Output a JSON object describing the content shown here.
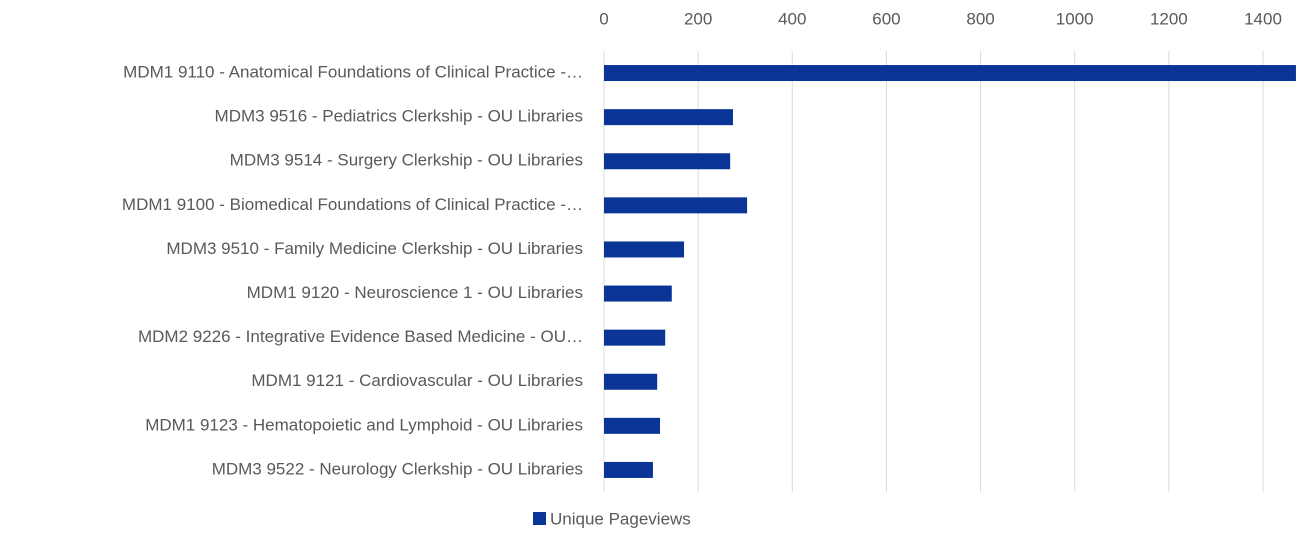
{
  "chart_data": {
    "type": "barh",
    "categories": [
      "MDM1 9110 - Anatomical Foundations of Clinical Practice -…",
      "MDM3 9516 - Pediatrics Clerkship - OU Libraries",
      "MDM3 9514 - Surgery Clerkship - OU Libraries",
      "MDM1 9100 - Biomedical Foundations of Clinical Practice -…",
      "MDM3 9510 - Family Medicine Clerkship - OU Libraries",
      "MDM1 9120 - Neuroscience 1 - OU Libraries",
      "MDM2 9226 - Integrative Evidence Based Medicine - OU…",
      "MDM1 9121 - Cardiovascular - OU Libraries",
      "MDM1 9123 - Hematopoietic and Lymphoid - OU Libraries",
      "MDM3 9522 - Neurology Clerkship - OU Libraries"
    ],
    "series": [
      {
        "name": "Unique Pageviews",
        "color": "#0a3596",
        "values": [
          1470,
          274,
          268,
          304,
          170,
          144,
          130,
          113,
          119,
          104
        ]
      }
    ],
    "xlim": [
      0,
      1400
    ],
    "xticks": [
      0,
      200,
      400,
      600,
      800,
      1000,
      1200,
      1400
    ],
    "grid": true,
    "legend": "bottom"
  }
}
